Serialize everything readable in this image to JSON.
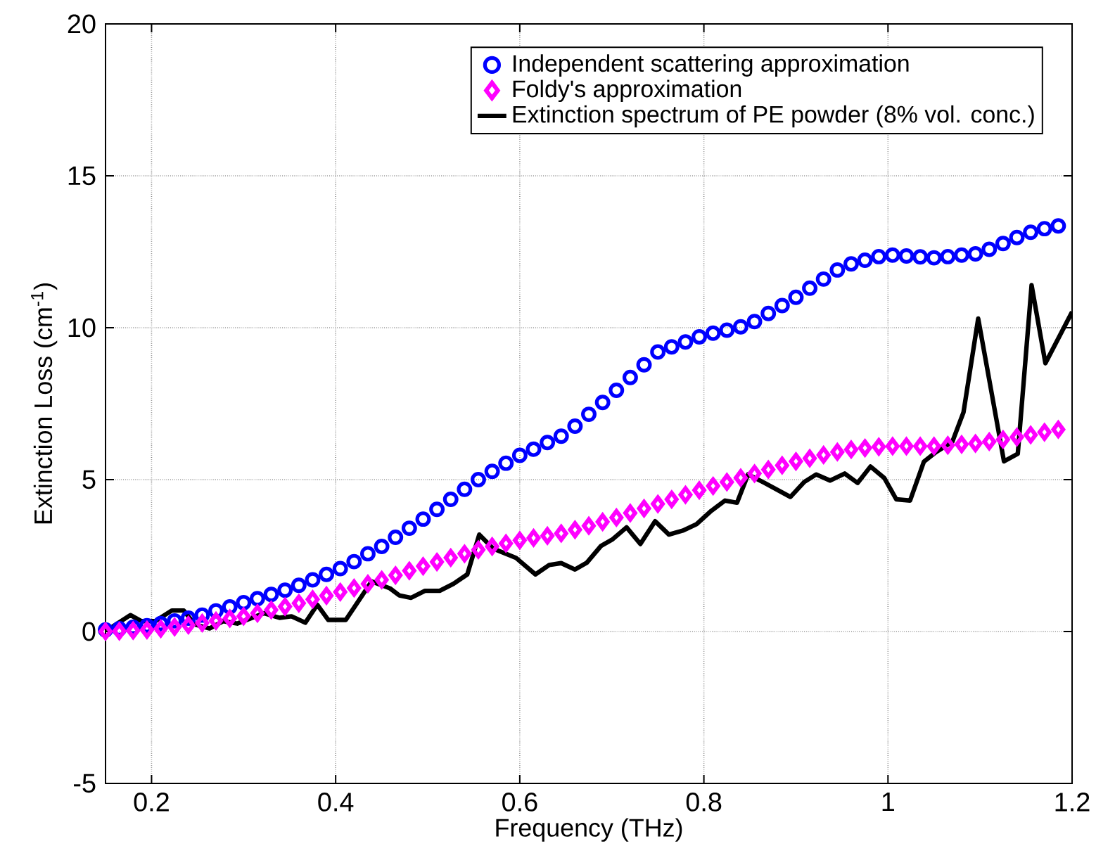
{
  "chart_data": {
    "type": "line",
    "xlabel": "Frequency (THz)",
    "ylabel": "Extinction Loss (cm$^{-1}$)",
    "xlim": [
      0.15,
      1.2
    ],
    "ylim": [
      -5,
      20
    ],
    "xticks": [
      0.2,
      0.4,
      0.6,
      0.8,
      1,
      1.2
    ],
    "yticks": [
      -5,
      0,
      5,
      10,
      15,
      20
    ],
    "grid": true,
    "legend": "top right",
    "series": [
      {
        "name": "Independent scattering approximation",
        "type": "scatter",
        "marker": "circle",
        "color": "#0000ff",
        "x": [
          0.15,
          0.165,
          0.18,
          0.195,
          0.21,
          0.225,
          0.24,
          0.255,
          0.27,
          0.285,
          0.3,
          0.315,
          0.33,
          0.345,
          0.36,
          0.375,
          0.39,
          0.405,
          0.42,
          0.435,
          0.45,
          0.465,
          0.48,
          0.495,
          0.51,
          0.525,
          0.54,
          0.555,
          0.57,
          0.585,
          0.6,
          0.615,
          0.63,
          0.645,
          0.66,
          0.675,
          0.69,
          0.705,
          0.72,
          0.735,
          0.75,
          0.765,
          0.78,
          0.795,
          0.81,
          0.825,
          0.84,
          0.855,
          0.87,
          0.885,
          0.9,
          0.915,
          0.93,
          0.945,
          0.96,
          0.975,
          0.99,
          1.005,
          1.02,
          1.035,
          1.05,
          1.065,
          1.08,
          1.095,
          1.11,
          1.125,
          1.14,
          1.155,
          1.17,
          1.185
        ],
        "values": [
          0.05,
          0.09,
          0.14,
          0.19,
          0.26,
          0.35,
          0.44,
          0.54,
          0.68,
          0.81,
          0.95,
          1.08,
          1.22,
          1.36,
          1.52,
          1.7,
          1.88,
          2.07,
          2.3,
          2.56,
          2.8,
          3.1,
          3.4,
          3.7,
          4.02,
          4.35,
          4.68,
          5.0,
          5.27,
          5.54,
          5.8,
          6.0,
          6.22,
          6.43,
          6.76,
          7.15,
          7.54,
          7.94,
          8.36,
          8.78,
          9.2,
          9.37,
          9.53,
          9.7,
          9.82,
          9.92,
          10.03,
          10.2,
          10.47,
          10.73,
          11.0,
          11.3,
          11.6,
          11.9,
          12.1,
          12.22,
          12.34,
          12.39,
          12.36,
          12.33,
          12.3,
          12.34,
          12.39,
          12.43,
          12.58,
          12.77,
          12.97,
          13.14,
          13.26,
          13.35
        ]
      },
      {
        "name": "Foldy's approximation",
        "type": "scatter",
        "marker": "diamond",
        "color": "#ff00ff",
        "x": [
          0.15,
          0.165,
          0.18,
          0.195,
          0.21,
          0.225,
          0.24,
          0.255,
          0.27,
          0.285,
          0.3,
          0.315,
          0.33,
          0.345,
          0.36,
          0.375,
          0.39,
          0.405,
          0.42,
          0.435,
          0.45,
          0.465,
          0.48,
          0.495,
          0.51,
          0.525,
          0.54,
          0.555,
          0.57,
          0.585,
          0.6,
          0.615,
          0.63,
          0.645,
          0.66,
          0.675,
          0.69,
          0.705,
          0.72,
          0.735,
          0.75,
          0.765,
          0.78,
          0.795,
          0.81,
          0.825,
          0.84,
          0.855,
          0.87,
          0.885,
          0.9,
          0.915,
          0.93,
          0.945,
          0.96,
          0.975,
          0.99,
          1.005,
          1.02,
          1.035,
          1.05,
          1.065,
          1.08,
          1.095,
          1.11,
          1.125,
          1.14,
          1.155,
          1.17,
          1.185
        ],
        "values": [
          0.0,
          0.01,
          0.03,
          0.05,
          0.09,
          0.15,
          0.21,
          0.28,
          0.35,
          0.43,
          0.5,
          0.6,
          0.71,
          0.82,
          0.93,
          1.06,
          1.18,
          1.3,
          1.43,
          1.57,
          1.7,
          1.85,
          2.0,
          2.15,
          2.29,
          2.43,
          2.56,
          2.69,
          2.8,
          2.9,
          3.0,
          3.08,
          3.15,
          3.23,
          3.35,
          3.48,
          3.61,
          3.75,
          3.9,
          4.05,
          4.2,
          4.35,
          4.5,
          4.65,
          4.79,
          4.92,
          5.06,
          5.2,
          5.33,
          5.47,
          5.6,
          5.7,
          5.81,
          5.91,
          5.99,
          6.04,
          6.08,
          6.1,
          6.1,
          6.1,
          6.1,
          6.13,
          6.16,
          6.19,
          6.25,
          6.32,
          6.4,
          6.47,
          6.56,
          6.65
        ]
      },
      {
        "name": "Extinction spectrum of PE powder (8% vol. conc.)",
        "line_style": "solid",
        "color": "#000000",
        "x": [
          0.151,
          0.177,
          0.189,
          0.204,
          0.222,
          0.235,
          0.247,
          0.263,
          0.278,
          0.293,
          0.322,
          0.339,
          0.352,
          0.367,
          0.38,
          0.392,
          0.411,
          0.439,
          0.459,
          0.469,
          0.482,
          0.497,
          0.513,
          0.528,
          0.543,
          0.556,
          0.571,
          0.596,
          0.617,
          0.632,
          0.645,
          0.66,
          0.673,
          0.688,
          0.701,
          0.716,
          0.731,
          0.747,
          0.762,
          0.777,
          0.792,
          0.808,
          0.823,
          0.836,
          0.848,
          0.866,
          0.894,
          0.909,
          0.922,
          0.937,
          0.953,
          0.967,
          0.981,
          0.996,
          1.009,
          1.024,
          1.039,
          1.052,
          1.07,
          1.082,
          1.098,
          1.126,
          1.141,
          1.156,
          1.171,
          1.2
        ],
        "values": [
          0.03,
          0.54,
          0.34,
          0.34,
          0.69,
          0.69,
          0.23,
          0.1,
          0.34,
          0.26,
          0.6,
          0.45,
          0.5,
          0.29,
          0.88,
          0.38,
          0.38,
          1.65,
          1.42,
          1.19,
          1.11,
          1.34,
          1.34,
          1.57,
          1.88,
          3.19,
          2.73,
          2.42,
          1.88,
          2.19,
          2.25,
          2.04,
          2.27,
          2.81,
          3.04,
          3.43,
          2.88,
          3.63,
          3.19,
          3.32,
          3.53,
          3.97,
          4.31,
          4.24,
          5.17,
          4.89,
          4.43,
          4.92,
          5.17,
          4.97,
          5.2,
          4.89,
          5.43,
          5.05,
          4.35,
          4.31,
          5.59,
          5.9,
          6.25,
          7.21,
          10.3,
          5.6,
          5.85,
          11.4,
          8.83,
          10.52
        ]
      }
    ]
  }
}
